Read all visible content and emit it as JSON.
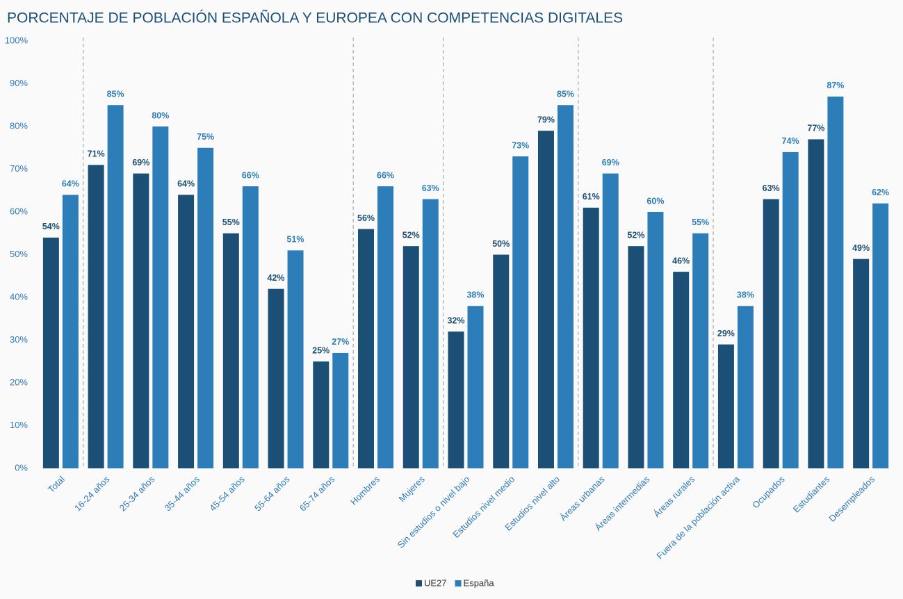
{
  "chart_data": {
    "type": "bar",
    "title": "PORCENTAJE DE POBLACIÓN ESPAÑOLA Y EUROPEA CON COMPETENCIAS DIGITALES",
    "categories": [
      "Total",
      "16-24 años",
      "25-34 años",
      "35-44 años",
      "45-54 años",
      "55-64 años",
      "65-74 años",
      "Hombres",
      "Mujeres",
      "Sin estudios o nivel bajo",
      "Estudios nivel medio",
      "Estudios nivel alto",
      "Áreas urbanas",
      "Áreas intermedias",
      "Áreas rurales",
      "Fuera de la población activa",
      "Ocupados",
      "Estudiantes",
      "Desempleados"
    ],
    "series": [
      {
        "name": "UE27",
        "color": "#1b4f75",
        "values": [
          54,
          71,
          69,
          64,
          55,
          42,
          25,
          56,
          52,
          32,
          50,
          79,
          61,
          52,
          46,
          29,
          63,
          77,
          49
        ],
        "value_labels": [
          "54%",
          "71%",
          "69%",
          "64%",
          "55%",
          "42%",
          "25%",
          "56%",
          "52%",
          "32%",
          "50%",
          "79%",
          "61%",
          "52%",
          "46%",
          "29%",
          "63%",
          "77%",
          "49%"
        ]
      },
      {
        "name": "España",
        "color": "#2d7db8",
        "values": [
          64,
          85,
          80,
          75,
          66,
          51,
          27,
          66,
          63,
          38,
          73,
          85,
          69,
          60,
          55,
          38,
          74,
          87,
          62
        ],
        "value_labels": [
          "64%",
          "85%",
          "80%",
          "75%",
          "66%",
          "51%",
          "27%",
          "66%",
          "63%",
          "38%",
          "73%",
          "85%",
          "69%",
          "60%",
          "55%",
          "38%",
          "74%",
          "87%",
          "62%"
        ]
      }
    ],
    "ylim": [
      0,
      100
    ],
    "yticks": [
      {
        "value": 0,
        "label": "0%"
      },
      {
        "value": 10,
        "label": "10%"
      },
      {
        "value": 20,
        "label": "20%"
      },
      {
        "value": 30,
        "label": "30%"
      },
      {
        "value": 40,
        "label": "40%"
      },
      {
        "value": 50,
        "label": "50%"
      },
      {
        "value": 60,
        "label": "60%"
      },
      {
        "value": 70,
        "label": "70%"
      },
      {
        "value": 80,
        "label": "80%"
      },
      {
        "value": 90,
        "label": "90%"
      },
      {
        "value": 100,
        "label": "100%"
      }
    ],
    "grid": false,
    "legend": "bottom"
  }
}
